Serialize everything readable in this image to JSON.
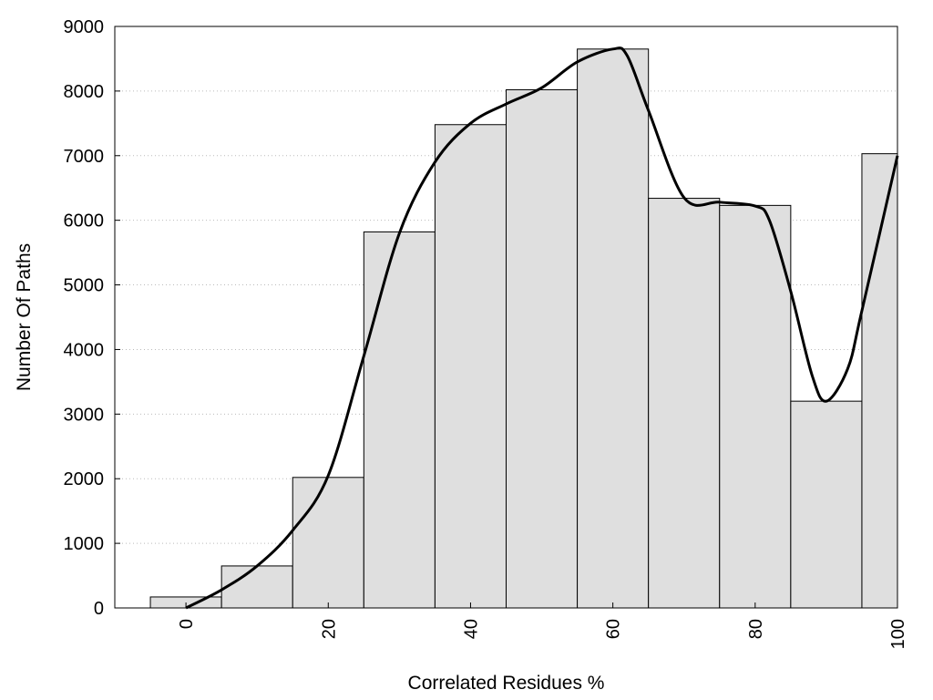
{
  "chart_data": {
    "type": "bar",
    "title": "",
    "xlabel": "Correlated Residues %",
    "ylabel": "Number Of Paths",
    "xlim": [
      -10,
      100
    ],
    "ylim": [
      0,
      9000
    ],
    "x_ticks": [
      0,
      20,
      40,
      60,
      80,
      100
    ],
    "y_ticks": [
      0,
      1000,
      2000,
      3000,
      4000,
      5000,
      6000,
      7000,
      8000,
      9000
    ],
    "grid": "horizontal dotted",
    "legend": "none",
    "bar_width": 10,
    "categories": [
      0,
      10,
      20,
      30,
      40,
      50,
      60,
      70,
      80,
      90,
      100
    ],
    "values": [
      170,
      650,
      2020,
      5820,
      7480,
      8020,
      8650,
      6340,
      6230,
      3200,
      7030
    ],
    "series": [
      {
        "type": "line",
        "x": [
          0,
          5,
          10,
          15,
          20,
          25,
          30,
          35,
          40,
          45,
          50,
          55,
          60,
          62,
          65,
          70,
          75,
          80,
          82,
          85,
          88,
          90,
          93,
          95,
          100
        ],
        "y": [
          0,
          280,
          650,
          1200,
          2050,
          3900,
          5800,
          6900,
          7500,
          7800,
          8050,
          8450,
          8650,
          8550,
          7700,
          6350,
          6280,
          6220,
          6000,
          4900,
          3600,
          3200,
          3700,
          4600,
          7000
        ]
      }
    ],
    "colors": {
      "bar_fill": "#dfdfdf",
      "bar_stroke": "#000000",
      "line": "#000000",
      "grid": "#bbbbbb"
    }
  }
}
